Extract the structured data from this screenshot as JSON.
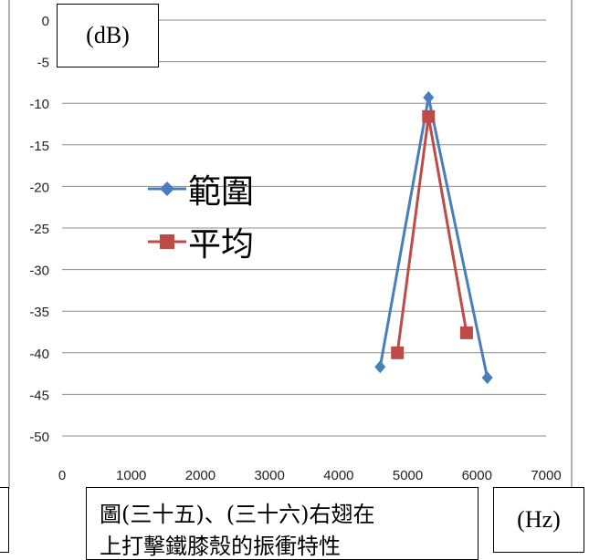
{
  "chart_data": {
    "type": "line",
    "y_unit": "(dB)",
    "x_unit": "(Hz)",
    "xlim": [
      0,
      7000
    ],
    "ylim": [
      -50,
      0
    ],
    "x_ticks": [
      0,
      1000,
      2000,
      3000,
      4000,
      5000,
      6000,
      7000
    ],
    "y_ticks": [
      0,
      -5,
      -10,
      -15,
      -20,
      -25,
      -30,
      -35,
      -40,
      -45,
      -50
    ],
    "grid": true,
    "legend_placement": "left-center",
    "series": [
      {
        "name": "範圍",
        "color": "#4A7EBB",
        "marker": "diamond",
        "x": [
          4600,
          5300,
          6150
        ],
        "y": [
          -41.7,
          -9.3,
          -43.0
        ]
      },
      {
        "name": "平均",
        "color": "#BE4B48",
        "marker": "square",
        "x": [
          4850,
          5300,
          5850
        ],
        "y": [
          -40.0,
          -11.6,
          -37.6
        ]
      }
    ]
  },
  "caption": {
    "line1": "圖(三十五)、(三十六)右翅在",
    "line2": "上打擊鐵膝殼的振衝特性"
  }
}
